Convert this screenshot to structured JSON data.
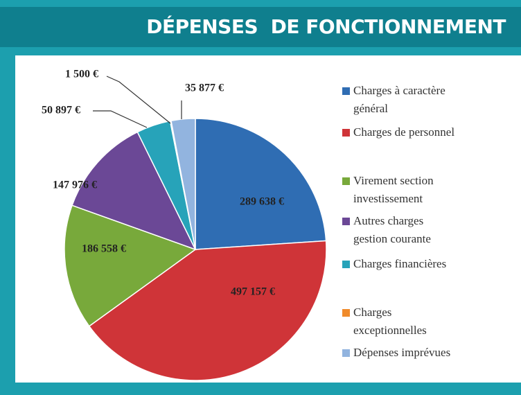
{
  "chart_data": {
    "type": "pie",
    "title": "DÉPENSES  DE FONCTIONNEMENT",
    "categories": [
      "Charges à caractère\ngénéral",
      "Charges de personnel",
      "Virement section\ninvestissement",
      "Autres charges\ngestion courante",
      "Charges financières",
      "Charges\nexceptionnelles",
      "Dépenses imprévues"
    ],
    "values": [
      289638,
      497157,
      186558,
      147976,
      50897,
      1500,
      35877
    ],
    "value_labels": [
      "289 638 €",
      "497 157 €",
      "186 558 €",
      "147 976 €",
      "50 897 €",
      "1 500 €",
      "35 877 €"
    ],
    "colors": [
      "#2f6db3",
      "#cf3438",
      "#78a93b",
      "#6b4896",
      "#27a3b9",
      "#f08b2b",
      "#92b4df"
    ]
  }
}
